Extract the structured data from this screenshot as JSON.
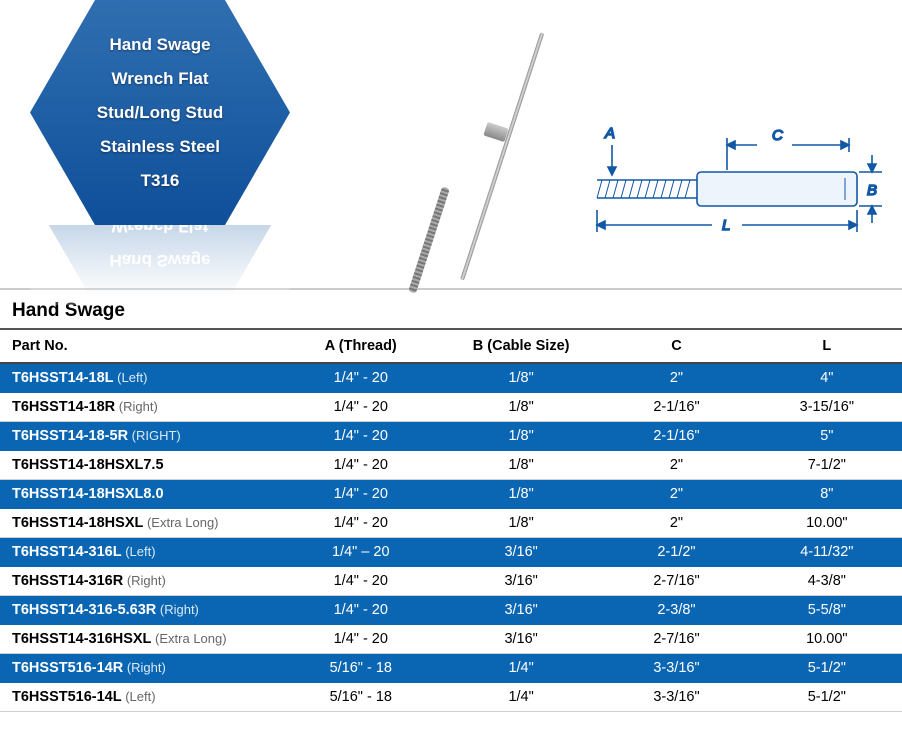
{
  "badge": {
    "lines": [
      "Hand Swage",
      "Wrench Flat",
      "Stud/Long Stud",
      "Stainless Steel",
      "T316"
    ],
    "bg_top": "#2f6fb0",
    "bg_bottom": "#0f4f9a",
    "text_color": "#ffffff"
  },
  "diagram": {
    "labels": {
      "A": "A",
      "B": "B",
      "C": "C",
      "L": "L"
    },
    "line_color": "#1158a6",
    "body_fill": "#e6eef7"
  },
  "section_title": "Hand Swage",
  "table": {
    "header_row_color": "#ffffff",
    "stripe_blue": "#0a66b3",
    "stripe_white": "#ffffff",
    "columns": [
      "Part No.",
      "A (Thread)",
      "B (Cable Size)",
      "C",
      "L"
    ],
    "col_align": [
      "left",
      "center",
      "center",
      "center",
      "center"
    ],
    "rows": [
      {
        "blue": true,
        "part": "T6HSST14-18L",
        "qual": "(Left)",
        "a": "1/4\" - 20",
        "b": "1/8\"",
        "c": "2\"",
        "l": "4\""
      },
      {
        "blue": false,
        "part": "T6HSST14-18R",
        "qual": "(Right)",
        "a": "1/4\" - 20",
        "b": "1/8\"",
        "c": "2-1/16\"",
        "l": "3-15/16\""
      },
      {
        "blue": true,
        "part": "T6HSST14-18-5R",
        "qual": "(RIGHT)",
        "a": "1/4\" - 20",
        "b": "1/8\"",
        "c": "2-1/16\"",
        "l": "5\""
      },
      {
        "blue": false,
        "part": "T6HSST14-18HSXL7.5",
        "qual": "",
        "a": "1/4\" - 20",
        "b": "1/8\"",
        "c": "2\"",
        "l": "7-1/2\""
      },
      {
        "blue": true,
        "part": "T6HSST14-18HSXL8.0",
        "qual": "",
        "a": "1/4\" - 20",
        "b": "1/8\"",
        "c": "2\"",
        "l": "8\""
      },
      {
        "blue": false,
        "part": "T6HSST14-18HSXL",
        "qual": "(Extra Long)",
        "a": "1/4\" - 20",
        "b": "1/8\"",
        "c": "2\"",
        "l": "10.00\""
      },
      {
        "blue": true,
        "part": "T6HSST14-316L",
        "qual": "(Left)",
        "a": "1/4\" – 20",
        "b": "3/16\"",
        "c": "2-1/2\"",
        "l": "4-11/32\""
      },
      {
        "blue": false,
        "part": "T6HSST14-316R",
        "qual": "(Right)",
        "a": "1/4\" - 20",
        "b": "3/16\"",
        "c": "2-7/16\"",
        "l": "4-3/8\""
      },
      {
        "blue": true,
        "part": "T6HSST14-316-5.63R",
        "qual": "(Right)",
        "a": "1/4\" - 20",
        "b": "3/16\"",
        "c": "2-3/8\"",
        "l": "5-5/8\""
      },
      {
        "blue": false,
        "part": "T6HSST14-316HSXL",
        "qual": "(Extra Long)",
        "a": "1/4\" - 20",
        "b": "3/16\"",
        "c": "2-7/16\"",
        "l": "10.00\""
      },
      {
        "blue": true,
        "part": "T6HSST516-14R",
        "qual": "(Right)",
        "a": "5/16\" - 18",
        "b": "1/4\"",
        "c": "3-3/16\"",
        "l": "5-1/2\""
      },
      {
        "blue": false,
        "part": "T6HSST516-14L",
        "qual": "(Left)",
        "a": "5/16\" - 18",
        "b": "1/4\"",
        "c": "3-3/16\"",
        "l": "5-1/2\""
      }
    ]
  }
}
